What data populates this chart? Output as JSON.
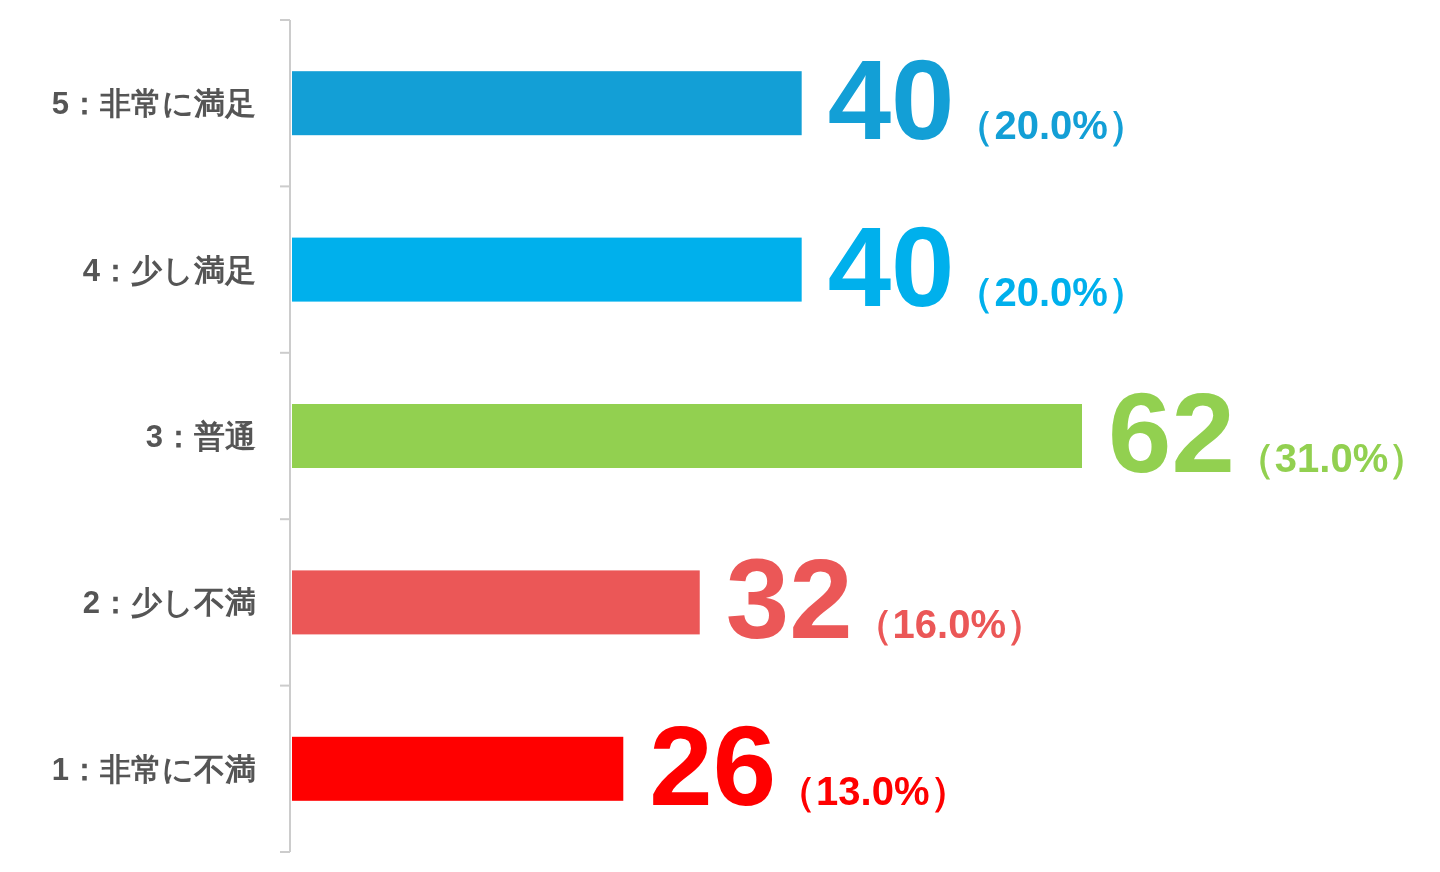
{
  "chart_data": {
    "type": "bar",
    "orientation": "horizontal",
    "categories": [
      "5：非常に満足",
      "4：少し満足",
      "3：普通",
      "2：少し不満",
      "1：非常に不満"
    ],
    "values": [
      40,
      40,
      62,
      32,
      26
    ],
    "colors": [
      "#139fd6",
      "#00b0ec",
      "#92d050",
      "#eb5757",
      "#ff0000"
    ],
    "value_labels": [
      "40（20.0%）",
      "40（20.0%）",
      "62（31.0%）",
      "32（16.0%）",
      "26（13.0%）"
    ]
  }
}
